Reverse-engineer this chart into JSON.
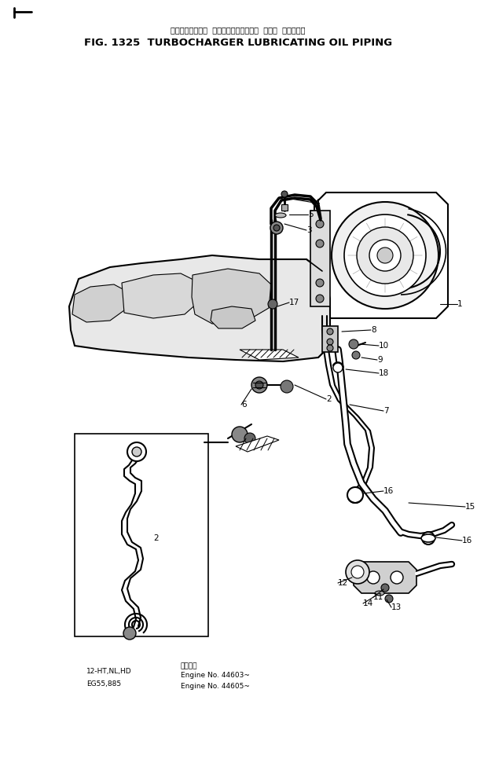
{
  "title_japanese": "ターボチャージャ  ルーブリケーティング  オイル  パイピング",
  "title_english": "FIG. 1325  TURBOCHARGER LUBRICATING OIL PIPING",
  "background_color": "#ffffff",
  "fig_width": 6.07,
  "fig_height": 9.94,
  "dpi": 100,
  "footer_col1_line1": "12-HT,NL,HD",
  "footer_col1_line2": "EG55,885",
  "footer_col2_header": "適用号機",
  "footer_col2_line1": "Engine No. 44603~",
  "footer_col2_line2": "Engine No. 44605~"
}
